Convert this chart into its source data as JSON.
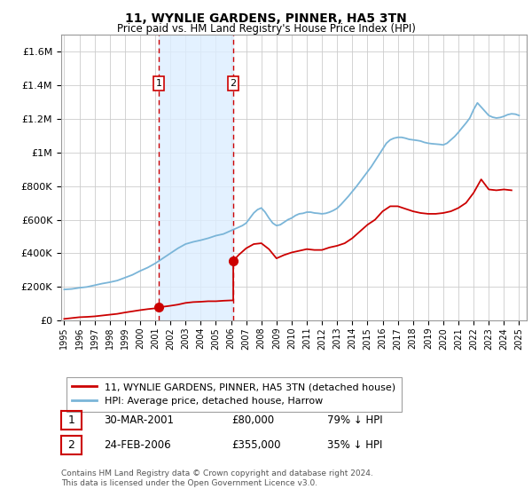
{
  "title": "11, WYNLIE GARDENS, PINNER, HA5 3TN",
  "subtitle": "Price paid vs. HM Land Registry's House Price Index (HPI)",
  "ylim": [
    0,
    1700000
  ],
  "yticks": [
    0,
    200000,
    400000,
    600000,
    800000,
    1000000,
    1200000,
    1400000,
    1600000
  ],
  "ytick_labels": [
    "£0",
    "£200K",
    "£400K",
    "£600K",
    "£800K",
    "£1M",
    "£1.2M",
    "£1.4M",
    "£1.6M"
  ],
  "xmin": 1994.8,
  "xmax": 2025.5,
  "transaction1_x": 2001.23,
  "transaction1_y": 80000,
  "transaction2_x": 2006.15,
  "transaction2_y": 355000,
  "hpi_color": "#7ab5d8",
  "property_color": "#cc0000",
  "legend_property_label": "11, WYNLIE GARDENS, PINNER, HA5 3TN (detached house)",
  "legend_hpi_label": "HPI: Average price, detached house, Harrow",
  "table_row1": [
    "1",
    "30-MAR-2001",
    "£80,000",
    "79% ↓ HPI"
  ],
  "table_row2": [
    "2",
    "24-FEB-2006",
    "£355,000",
    "35% ↓ HPI"
  ],
  "footer": "Contains HM Land Registry data © Crown copyright and database right 2024.\nThis data is licensed under the Open Government Licence v3.0.",
  "background_color": "#ffffff",
  "grid_color": "#cccccc",
  "shade_color": "#ddeeff",
  "hpi_years": [
    1995,
    1995.5,
    1996,
    1996.5,
    1997,
    1997.5,
    1998,
    1998.5,
    1999,
    1999.5,
    2000,
    2000.5,
    2001,
    2001.5,
    2002,
    2002.5,
    2003,
    2003.5,
    2004,
    2004.5,
    2005,
    2005.25,
    2005.5,
    2005.75,
    2006,
    2006.25,
    2006.5,
    2006.75,
    2007,
    2007.25,
    2007.5,
    2007.75,
    2008,
    2008.25,
    2008.5,
    2008.75,
    2009,
    2009.25,
    2009.5,
    2009.75,
    2010,
    2010.25,
    2010.5,
    2010.75,
    2011,
    2011.25,
    2011.5,
    2011.75,
    2012,
    2012.25,
    2012.5,
    2012.75,
    2013,
    2013.25,
    2013.5,
    2013.75,
    2014,
    2014.25,
    2014.5,
    2014.75,
    2015,
    2015.25,
    2015.5,
    2015.75,
    2016,
    2016.25,
    2016.5,
    2016.75,
    2017,
    2017.25,
    2017.5,
    2017.75,
    2018,
    2018.25,
    2018.5,
    2018.75,
    2019,
    2019.25,
    2019.5,
    2019.75,
    2020,
    2020.25,
    2020.5,
    2020.75,
    2021,
    2021.25,
    2021.5,
    2021.75,
    2022,
    2022.25,
    2022.5,
    2022.75,
    2023,
    2023.25,
    2023.5,
    2023.75,
    2024,
    2024.25,
    2024.5,
    2024.75,
    2025
  ],
  "hpi_values": [
    185000,
    188000,
    195000,
    200000,
    210000,
    220000,
    228000,
    238000,
    255000,
    272000,
    295000,
    315000,
    340000,
    370000,
    400000,
    430000,
    455000,
    468000,
    478000,
    490000,
    505000,
    510000,
    515000,
    525000,
    535000,
    545000,
    555000,
    565000,
    580000,
    610000,
    640000,
    660000,
    670000,
    645000,
    610000,
    580000,
    565000,
    570000,
    585000,
    600000,
    610000,
    625000,
    635000,
    638000,
    645000,
    645000,
    640000,
    638000,
    635000,
    638000,
    645000,
    655000,
    668000,
    690000,
    715000,
    740000,
    768000,
    795000,
    825000,
    855000,
    885000,
    915000,
    950000,
    985000,
    1020000,
    1055000,
    1075000,
    1085000,
    1090000,
    1090000,
    1085000,
    1078000,
    1075000,
    1072000,
    1068000,
    1060000,
    1055000,
    1052000,
    1050000,
    1048000,
    1045000,
    1055000,
    1075000,
    1095000,
    1120000,
    1148000,
    1175000,
    1205000,
    1255000,
    1295000,
    1270000,
    1245000,
    1220000,
    1210000,
    1205000,
    1208000,
    1215000,
    1225000,
    1230000,
    1228000,
    1220000
  ],
  "prop_years": [
    1995,
    1995.5,
    1996,
    1996.5,
    1997,
    1997.5,
    1998,
    1998.5,
    1999,
    1999.5,
    2000,
    2000.5,
    2001,
    2001.23,
    2001.23,
    2001.5,
    2002,
    2002.5,
    2003,
    2003.5,
    2004,
    2004.5,
    2005,
    2005.5,
    2006,
    2006.15,
    2006.15,
    2006.5,
    2007,
    2007.5,
    2008,
    2008.5,
    2009,
    2009.5,
    2010,
    2010.5,
    2011,
    2011.5,
    2012,
    2012.5,
    2013,
    2013.5,
    2014,
    2014.5,
    2015,
    2015.5,
    2016,
    2016.5,
    2017,
    2017.5,
    2018,
    2018.5,
    2019,
    2019.5,
    2020,
    2020.5,
    2021,
    2021.5,
    2022,
    2022.25,
    2022.5,
    2022.75,
    2023,
    2023.5,
    2024,
    2024.5
  ],
  "prop_values": [
    10000,
    15000,
    20000,
    22000,
    25000,
    30000,
    35000,
    40000,
    48000,
    55000,
    62000,
    68000,
    73000,
    80000,
    80000,
    82000,
    88000,
    95000,
    105000,
    110000,
    112000,
    115000,
    115000,
    118000,
    120000,
    120000,
    355000,
    390000,
    430000,
    455000,
    460000,
    425000,
    370000,
    390000,
    405000,
    415000,
    425000,
    420000,
    420000,
    435000,
    445000,
    460000,
    490000,
    530000,
    570000,
    600000,
    650000,
    680000,
    680000,
    665000,
    650000,
    640000,
    635000,
    635000,
    640000,
    650000,
    670000,
    700000,
    760000,
    800000,
    840000,
    810000,
    780000,
    775000,
    780000,
    775000
  ]
}
